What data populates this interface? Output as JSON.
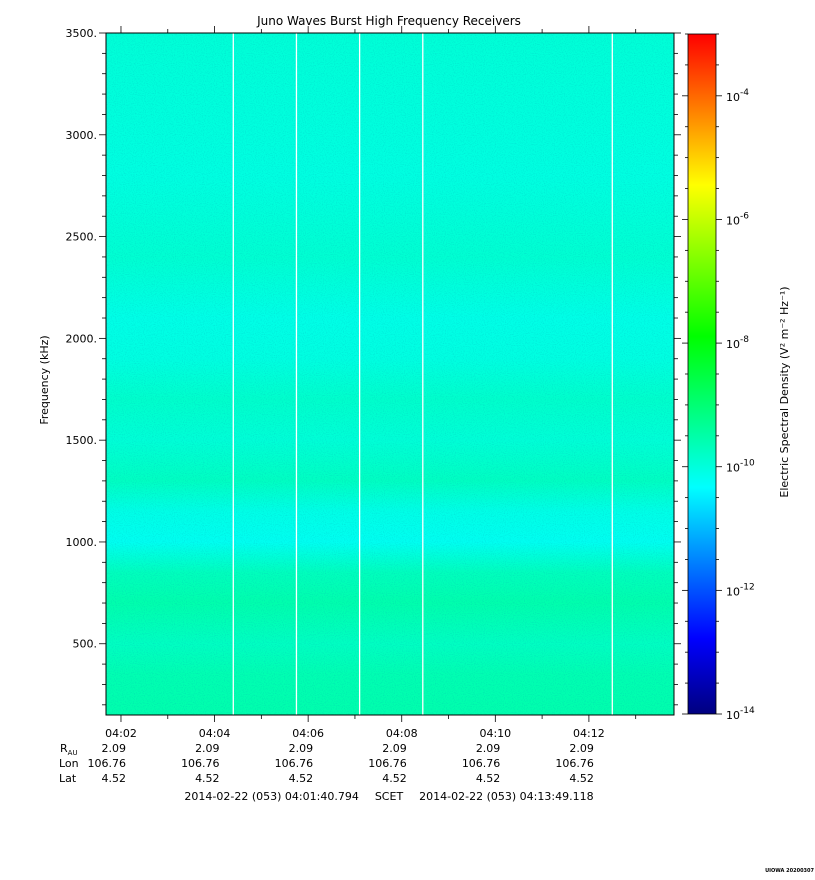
{
  "chart_data": {
    "type": "heatmap",
    "title": "Juno Waves Burst High Frequency Receivers",
    "ylabel": "Frequency (kHz)",
    "ylim": [
      150,
      3500
    ],
    "y_ticks": [
      {
        "value": 500,
        "label": "500."
      },
      {
        "value": 1000,
        "label": "1000."
      },
      {
        "value": 1500,
        "label": "1500."
      },
      {
        "value": 2000,
        "label": "2000."
      },
      {
        "value": 2500,
        "label": "2500."
      },
      {
        "value": 3000,
        "label": "3000."
      },
      {
        "value": 3500,
        "label": "3500."
      }
    ],
    "x_range_minutes": [
      1.6799,
      13.8186
    ],
    "x_ticks": [
      {
        "minute": 2,
        "label": "04:02"
      },
      {
        "minute": 4,
        "label": "04:04"
      },
      {
        "minute": 6,
        "label": "04:06"
      },
      {
        "minute": 8,
        "label": "04:08"
      },
      {
        "minute": 10,
        "label": "04:10"
      },
      {
        "minute": 12,
        "label": "04:12"
      }
    ],
    "data_gaps_minutes": [
      4.4,
      5.75,
      7.1,
      8.45,
      12.5
    ],
    "colorbar": {
      "label": "Electric Spectral Density (V² m⁻² Hz⁻¹)",
      "scale": "log",
      "range_exponent": [
        -14,
        -3
      ],
      "ticks": [
        {
          "exp": -14,
          "label": "-14"
        },
        {
          "exp": -12,
          "label": "-12"
        },
        {
          "exp": -10,
          "label": "-10"
        },
        {
          "exp": -8,
          "label": "-8"
        },
        {
          "exp": -6,
          "label": "-6"
        },
        {
          "exp": -4,
          "label": "-4"
        }
      ],
      "colors": [
        "#00007f",
        "#0000ff",
        "#007fff",
        "#00ffff",
        "#00ff7f",
        "#00ff00",
        "#7fff00",
        "#ffff00",
        "#ff7f00",
        "#ff0000"
      ]
    },
    "intensity_profile": [
      {
        "freq": 150,
        "exp": -9.55
      },
      {
        "freq": 350,
        "exp": -9.6
      },
      {
        "freq": 500,
        "exp": -9.75
      },
      {
        "freq": 700,
        "exp": -9.55
      },
      {
        "freq": 850,
        "exp": -9.7
      },
      {
        "freq": 1000,
        "exp": -10.2
      },
      {
        "freq": 1150,
        "exp": -10.1
      },
      {
        "freq": 1300,
        "exp": -9.75
      },
      {
        "freq": 1500,
        "exp": -9.95
      },
      {
        "freq": 1700,
        "exp": -9.85
      },
      {
        "freq": 1900,
        "exp": -10.05
      },
      {
        "freq": 2100,
        "exp": -10.1
      },
      {
        "freq": 2400,
        "exp": -9.9
      },
      {
        "freq": 2800,
        "exp": -10.05
      },
      {
        "freq": 3200,
        "exp": -10.0
      },
      {
        "freq": 3500,
        "exp": -9.95
      }
    ],
    "ephemeris": {
      "row_labels": {
        "r": "R",
        "r_sub": "AU",
        "lon": "Lon",
        "lat": "Lat"
      },
      "r_values": [
        "2.09",
        "2.09",
        "2.09",
        "2.09",
        "2.09",
        "2.09"
      ],
      "lon_values": [
        "106.76",
        "106.76",
        "106.76",
        "106.76",
        "106.76",
        "106.76"
      ],
      "lat_values": [
        "4.52",
        "4.52",
        "4.52",
        "4.52",
        "4.52",
        "4.52"
      ]
    },
    "time_range": {
      "start": "2014-02-22 (053) 04:01:40.794",
      "label": "SCET",
      "end": "2014-02-22 (053) 04:13:49.118"
    }
  },
  "stamp": "UIOWA 20200307"
}
